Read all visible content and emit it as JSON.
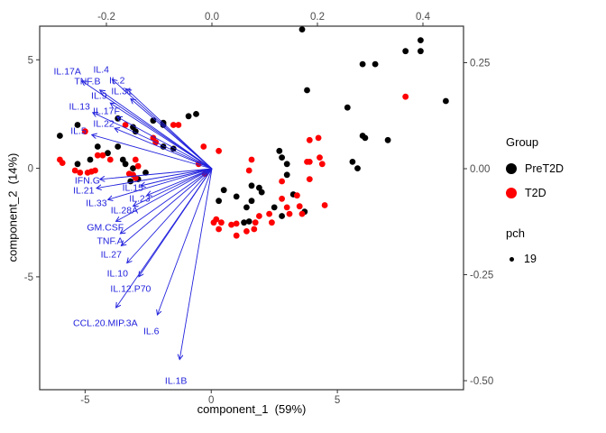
{
  "chart_data": {
    "type": "scatter",
    "subtype": "pca-biplot",
    "xlabel": "component_1  (59%)",
    "ylabel": "component_2  (14%)",
    "x_axis": {
      "lim": [
        -6.8,
        10.0
      ],
      "ticks": [
        -5,
        0,
        5
      ],
      "labels": [
        "-5",
        "0",
        "5"
      ]
    },
    "y_axis": {
      "lim": [
        -10.2,
        6.55
      ],
      "ticks": [
        5,
        0,
        -5
      ],
      "labels": [
        "5",
        "0",
        "-5"
      ]
    },
    "top_axis": {
      "ticks": [
        -0.2,
        0.0,
        0.2,
        0.4
      ],
      "labels": [
        "-0.2",
        "0.0",
        "0.2",
        "0.4"
      ]
    },
    "right_axis": {
      "ticks": [
        0.25,
        0.0,
        -0.25,
        -0.5
      ],
      "labels": [
        "0.25",
        "0.00",
        "-0.25",
        "-0.50"
      ]
    },
    "grid": false,
    "series": [
      {
        "name": "PreT2D",
        "color": "#000000",
        "points": [
          [
            -5.3,
            2.0
          ],
          [
            -6.0,
            1.5
          ],
          [
            -4.5,
            1.0
          ],
          [
            -5.3,
            0.2
          ],
          [
            -4.8,
            0.4
          ],
          [
            -4.1,
            0.7
          ],
          [
            -3.7,
            1.0
          ],
          [
            -3.5,
            0.4
          ],
          [
            -3.4,
            0.2
          ],
          [
            -3.1,
            0.0
          ],
          [
            -2.6,
            -0.2
          ],
          [
            -3.1,
            1.9
          ],
          [
            -3.0,
            1.7
          ],
          [
            -3.7,
            2.3
          ],
          [
            -2.3,
            2.2
          ],
          [
            -1.9,
            2.0
          ],
          [
            -1.5,
            0.9
          ],
          [
            -1.9,
            1.0
          ],
          [
            -3.2,
            -0.6
          ],
          [
            -2.9,
            -0.5
          ],
          [
            -0.9,
            2.4
          ],
          [
            -0.6,
            2.5
          ],
          [
            -1.9,
            2.1
          ],
          [
            2.7,
            0.8
          ],
          [
            3.0,
            0.2
          ],
          [
            3.0,
            -0.3
          ],
          [
            2.8,
            0.5
          ],
          [
            1.6,
            -0.8
          ],
          [
            1.9,
            -0.9
          ],
          [
            2.0,
            -1.1
          ],
          [
            0.5,
            -1.0
          ],
          [
            1.0,
            -1.3
          ],
          [
            0.3,
            -1.5
          ],
          [
            1.6,
            -1.5
          ],
          [
            1.4,
            -1.8
          ],
          [
            2.5,
            -1.8
          ],
          [
            3.25,
            -1.2
          ],
          [
            1.3,
            -2.5
          ],
          [
            1.5,
            -2.45
          ],
          [
            2.8,
            -2.2
          ],
          [
            3.7,
            -2.0
          ],
          [
            3.6,
            6.4
          ],
          [
            8.3,
            5.9
          ],
          [
            7.7,
            5.4
          ],
          [
            8.3,
            5.4
          ],
          [
            6.0,
            4.8
          ],
          [
            6.5,
            4.8
          ],
          [
            3.8,
            3.6
          ],
          [
            5.4,
            2.8
          ],
          [
            9.3,
            3.1
          ],
          [
            6.0,
            1.5
          ],
          [
            7.0,
            1.3
          ],
          [
            6.1,
            1.4
          ],
          [
            5.6,
            0.3
          ],
          [
            5.8,
            0.0
          ]
        ]
      },
      {
        "name": "T2D",
        "color": "#FF0000",
        "points": [
          [
            -5.0,
            1.7
          ],
          [
            -6.0,
            0.4
          ],
          [
            -5.9,
            0.25
          ],
          [
            -5.4,
            -0.1
          ],
          [
            -5.2,
            -0.2
          ],
          [
            -4.9,
            -0.2
          ],
          [
            -4.75,
            -0.15
          ],
          [
            -4.6,
            -0.1
          ],
          [
            -4.5,
            0.6
          ],
          [
            -4.3,
            0.6
          ],
          [
            -4.0,
            0.4
          ],
          [
            -3.4,
            2.0
          ],
          [
            -2.3,
            1.4
          ],
          [
            -2.2,
            1.2
          ],
          [
            -3.0,
            0.4
          ],
          [
            -2.9,
            0.1
          ],
          [
            -3.25,
            -0.25
          ],
          [
            -3.1,
            -0.3
          ],
          [
            -3.0,
            -0.45
          ],
          [
            -1.5,
            2.0
          ],
          [
            -1.3,
            2.0
          ],
          [
            -0.3,
            1.0
          ],
          [
            0.3,
            0.8
          ],
          [
            -0.5,
            0.2
          ],
          [
            -0.25,
            -0.25
          ],
          [
            1.6,
            0.4
          ],
          [
            1.5,
            -0.1
          ],
          [
            2.8,
            -0.6
          ],
          [
            3.9,
            1.3
          ],
          [
            4.3,
            0.5
          ],
          [
            3.9,
            0.3
          ],
          [
            0.1,
            -2.5
          ],
          [
            0.2,
            -2.35
          ],
          [
            0.4,
            -2.5
          ],
          [
            0.3,
            -2.8
          ],
          [
            0.8,
            -2.6
          ],
          [
            1.0,
            -2.55
          ],
          [
            1.0,
            -3.1
          ],
          [
            1.4,
            -2.9
          ],
          [
            1.7,
            -2.8
          ],
          [
            1.75,
            -2.5
          ],
          [
            1.9,
            -2.2
          ],
          [
            2.3,
            -2.1
          ],
          [
            2.4,
            -2.5
          ],
          [
            2.8,
            -1.4
          ],
          [
            3.0,
            -1.8
          ],
          [
            3.1,
            -2.1
          ],
          [
            3.5,
            -1.75
          ],
          [
            3.6,
            -2.1
          ],
          [
            3.4,
            -1.25
          ],
          [
            4.5,
            -1.7
          ],
          [
            7.7,
            3.3
          ],
          [
            4.25,
            1.4
          ],
          [
            3.8,
            0.3
          ],
          [
            4.4,
            0.2
          ],
          [
            3.9,
            -0.5
          ]
        ]
      }
    ],
    "loadings": {
      "color": "#2222DD",
      "items": [
        {
          "name": "IL.17A",
          "x": -0.274,
          "y": 0.23
        },
        {
          "name": "IL.4",
          "x": -0.21,
          "y": 0.234
        },
        {
          "name": "TNF.B",
          "x": -0.236,
          "y": 0.206
        },
        {
          "name": "IL.2",
          "x": -0.18,
          "y": 0.209
        },
        {
          "name": "IL.31",
          "x": -0.171,
          "y": 0.183
        },
        {
          "name": "IL.9",
          "x": -0.214,
          "y": 0.172
        },
        {
          "name": "IL.13",
          "x": -0.251,
          "y": 0.147
        },
        {
          "name": "IL.17F",
          "x": -0.2,
          "y": 0.136
        },
        {
          "name": "IL.22",
          "x": -0.205,
          "y": 0.106
        },
        {
          "name": "IL.5",
          "x": -0.253,
          "y": 0.089
        },
        {
          "name": "IFN.G",
          "x": -0.236,
          "y": -0.028
        },
        {
          "name": "IL.21",
          "x": -0.243,
          "y": -0.051
        },
        {
          "name": "IL.15",
          "x": -0.15,
          "y": -0.045
        },
        {
          "name": "IL.33",
          "x": -0.219,
          "y": -0.081
        },
        {
          "name": "IL.23",
          "x": -0.137,
          "y": -0.07
        },
        {
          "name": "IL.28A",
          "x": -0.166,
          "y": -0.098
        },
        {
          "name": "GM.CSF",
          "x": -0.202,
          "y": -0.138
        },
        {
          "name": "TNF.A",
          "x": -0.193,
          "y": -0.17
        },
        {
          "name": "IL.27",
          "x": -0.191,
          "y": -0.202
        },
        {
          "name": "IL.10",
          "x": -0.179,
          "y": -0.247
        },
        {
          "name": "IL.12.P70",
          "x": -0.154,
          "y": -0.283
        },
        {
          "name": "CCL.20.MIP.3A",
          "x": -0.202,
          "y": -0.364
        },
        {
          "name": "IL.6",
          "x": -0.115,
          "y": -0.383
        },
        {
          "name": "IL.1B",
          "x": -0.068,
          "y": -0.5
        }
      ]
    },
    "legend": {
      "group_title": "Group",
      "items": [
        {
          "label": "PreT2D",
          "color": "#000000"
        },
        {
          "label": "T2D",
          "color": "#FF0000"
        }
      ],
      "pch_title": "pch",
      "pch_value": "19"
    },
    "colors": {
      "point_black": "#000000",
      "point_red": "#FF0000",
      "arrow_blue": "#2222DD",
      "tick_label": "#4D4D4D",
      "axis_line": "#333333"
    }
  }
}
